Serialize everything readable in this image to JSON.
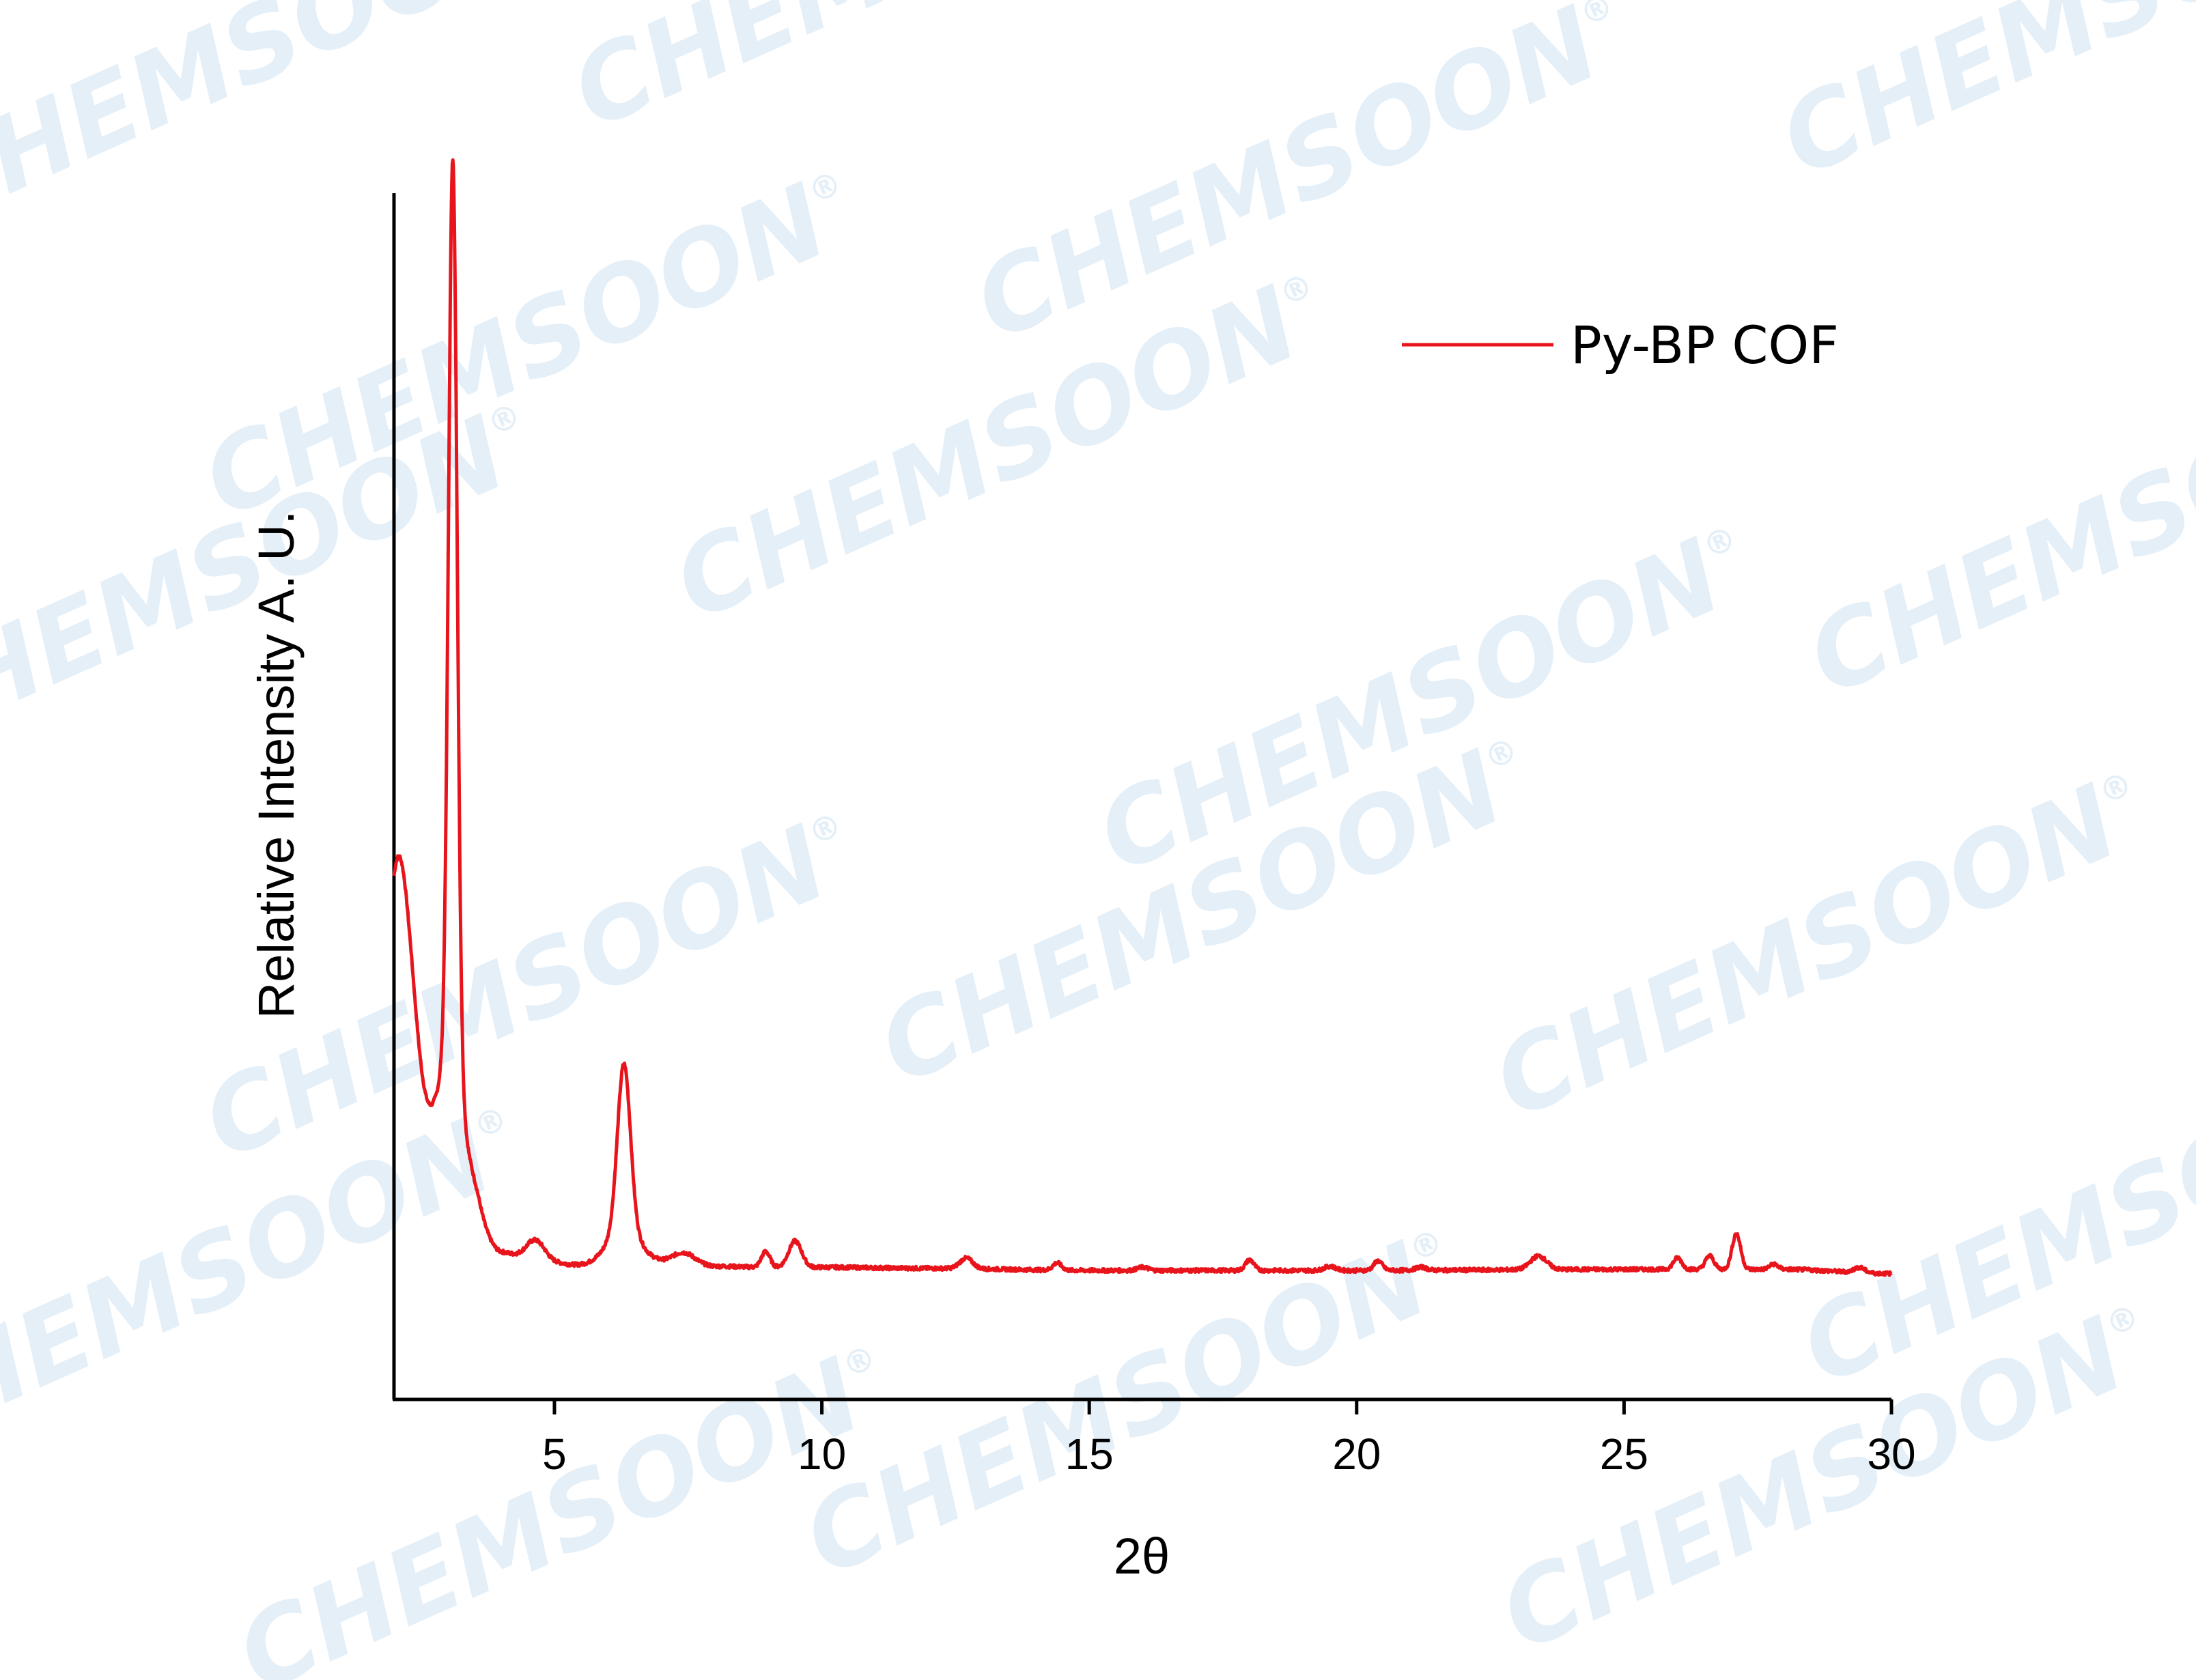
{
  "watermark": {
    "text": "CHEMSOON",
    "mark": "®",
    "color": "#e4eff8"
  },
  "chart_data": {
    "type": "line",
    "xlabel": "2θ",
    "ylabel": "Relative Intensity A. U.",
    "xlim": [
      2,
      30
    ],
    "ylim": [
      0,
      1.15
    ],
    "xticks": [
      5,
      10,
      15,
      20,
      25,
      30
    ],
    "yticks": [],
    "grid": false,
    "legend_position": "top-right",
    "series": [
      {
        "name": "Py-BP COF",
        "color": "#e8141c",
        "peaks": [
          {
            "x": 2.1,
            "height": 0.27,
            "width": 0.25
          },
          {
            "x": 3.1,
            "height": 0.86,
            "width": 0.08
          },
          {
            "x": 3.1,
            "height": 0.19,
            "width": 0.28
          },
          {
            "x": 4.65,
            "height": 0.018,
            "width": 0.18
          },
          {
            "x": 6.3,
            "height": 0.157,
            "width": 0.12
          },
          {
            "x": 6.3,
            "height": 0.035,
            "width": 0.3
          },
          {
            "x": 7.4,
            "height": 0.01,
            "width": 0.2
          },
          {
            "x": 8.95,
            "height": 0.015,
            "width": 0.08
          },
          {
            "x": 9.5,
            "height": 0.025,
            "width": 0.12
          },
          {
            "x": 12.7,
            "height": 0.01,
            "width": 0.12
          },
          {
            "x": 14.4,
            "height": 0.007,
            "width": 0.08
          },
          {
            "x": 16.0,
            "height": 0.003,
            "width": 0.1
          },
          {
            "x": 18.0,
            "height": 0.01,
            "width": 0.08
          },
          {
            "x": 19.5,
            "height": 0.004,
            "width": 0.1
          },
          {
            "x": 20.4,
            "height": 0.009,
            "width": 0.08
          },
          {
            "x": 21.2,
            "height": 0.003,
            "width": 0.1
          },
          {
            "x": 23.4,
            "height": 0.013,
            "width": 0.15
          },
          {
            "x": 26.0,
            "height": 0.011,
            "width": 0.08
          },
          {
            "x": 26.6,
            "height": 0.013,
            "width": 0.08
          },
          {
            "x": 27.1,
            "height": 0.034,
            "width": 0.08
          },
          {
            "x": 27.8,
            "height": 0.005,
            "width": 0.08
          },
          {
            "x": 29.4,
            "height": 0.005,
            "width": 0.1
          }
        ],
        "baseline": [
          [
            2.0,
            0.25
          ],
          [
            2.3,
            0.24
          ],
          [
            3.3,
            0.12
          ],
          [
            3.6,
            0.15
          ],
          [
            4.0,
            0.14
          ],
          [
            4.5,
            0.135
          ],
          [
            5.0,
            0.13
          ],
          [
            5.5,
            0.128
          ],
          [
            6.5,
            0.128
          ],
          [
            7.0,
            0.13
          ],
          [
            7.5,
            0.13
          ],
          [
            8.0,
            0.127
          ],
          [
            9.0,
            0.126
          ],
          [
            10.0,
            0.126
          ],
          [
            12.0,
            0.125
          ],
          [
            15.0,
            0.123
          ],
          [
            20.0,
            0.123
          ],
          [
            25.0,
            0.124
          ],
          [
            28.0,
            0.124
          ],
          [
            30.0,
            0.12
          ]
        ]
      }
    ]
  }
}
